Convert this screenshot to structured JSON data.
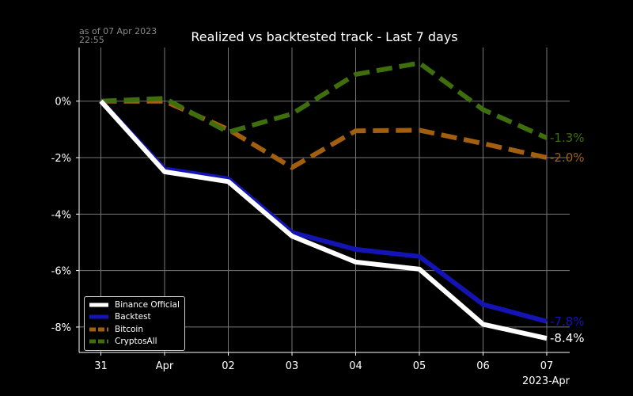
{
  "timestamp": {
    "line1": "as of 07 Apr 2023",
    "line2": "22:55"
  },
  "chart_data": {
    "type": "line",
    "title": "Realized vs backtested track - Last 7 days",
    "xlabel": "",
    "ylabel": "",
    "categories": [
      "31",
      "Apr",
      "02",
      "03",
      "04",
      "05",
      "06",
      "07"
    ],
    "x_offset_label": "2023-Apr",
    "ylim": [
      -8.9,
      1.9
    ],
    "yticks": [
      0,
      -2,
      -4,
      -6,
      -8
    ],
    "ytick_labels": [
      "0%",
      "-2%",
      "-4%",
      "-6%",
      "-8%"
    ],
    "grid": true,
    "legend_position": "lower-left",
    "series": [
      {
        "name": "Binance Official",
        "color": "#ffffff",
        "dash": "solid",
        "values": [
          0.0,
          -2.5,
          -2.85,
          -4.78,
          -5.7,
          -5.95,
          -7.9,
          -8.4
        ],
        "end_label": "-8.4%"
      },
      {
        "name": "Backtest",
        "color": "#1414b4",
        "dash": "solid",
        "values": [
          0.0,
          -2.4,
          -2.75,
          -4.65,
          -5.25,
          -5.5,
          -7.2,
          -7.8
        ],
        "end_label": "-7.8%"
      },
      {
        "name": "Bitcoin",
        "color": "#a35f10",
        "dash": "dashed",
        "values": [
          0.0,
          0.0,
          -1.0,
          -2.35,
          -1.05,
          -1.03,
          -1.5,
          -2.0
        ],
        "end_label": "-2.0%"
      },
      {
        "name": "CryptosAll",
        "color": "#3f6e0c",
        "dash": "dashed",
        "values": [
          0.0,
          0.1,
          -1.1,
          -0.45,
          0.95,
          1.35,
          -0.3,
          -1.3
        ],
        "end_label": "-1.3%"
      }
    ]
  }
}
